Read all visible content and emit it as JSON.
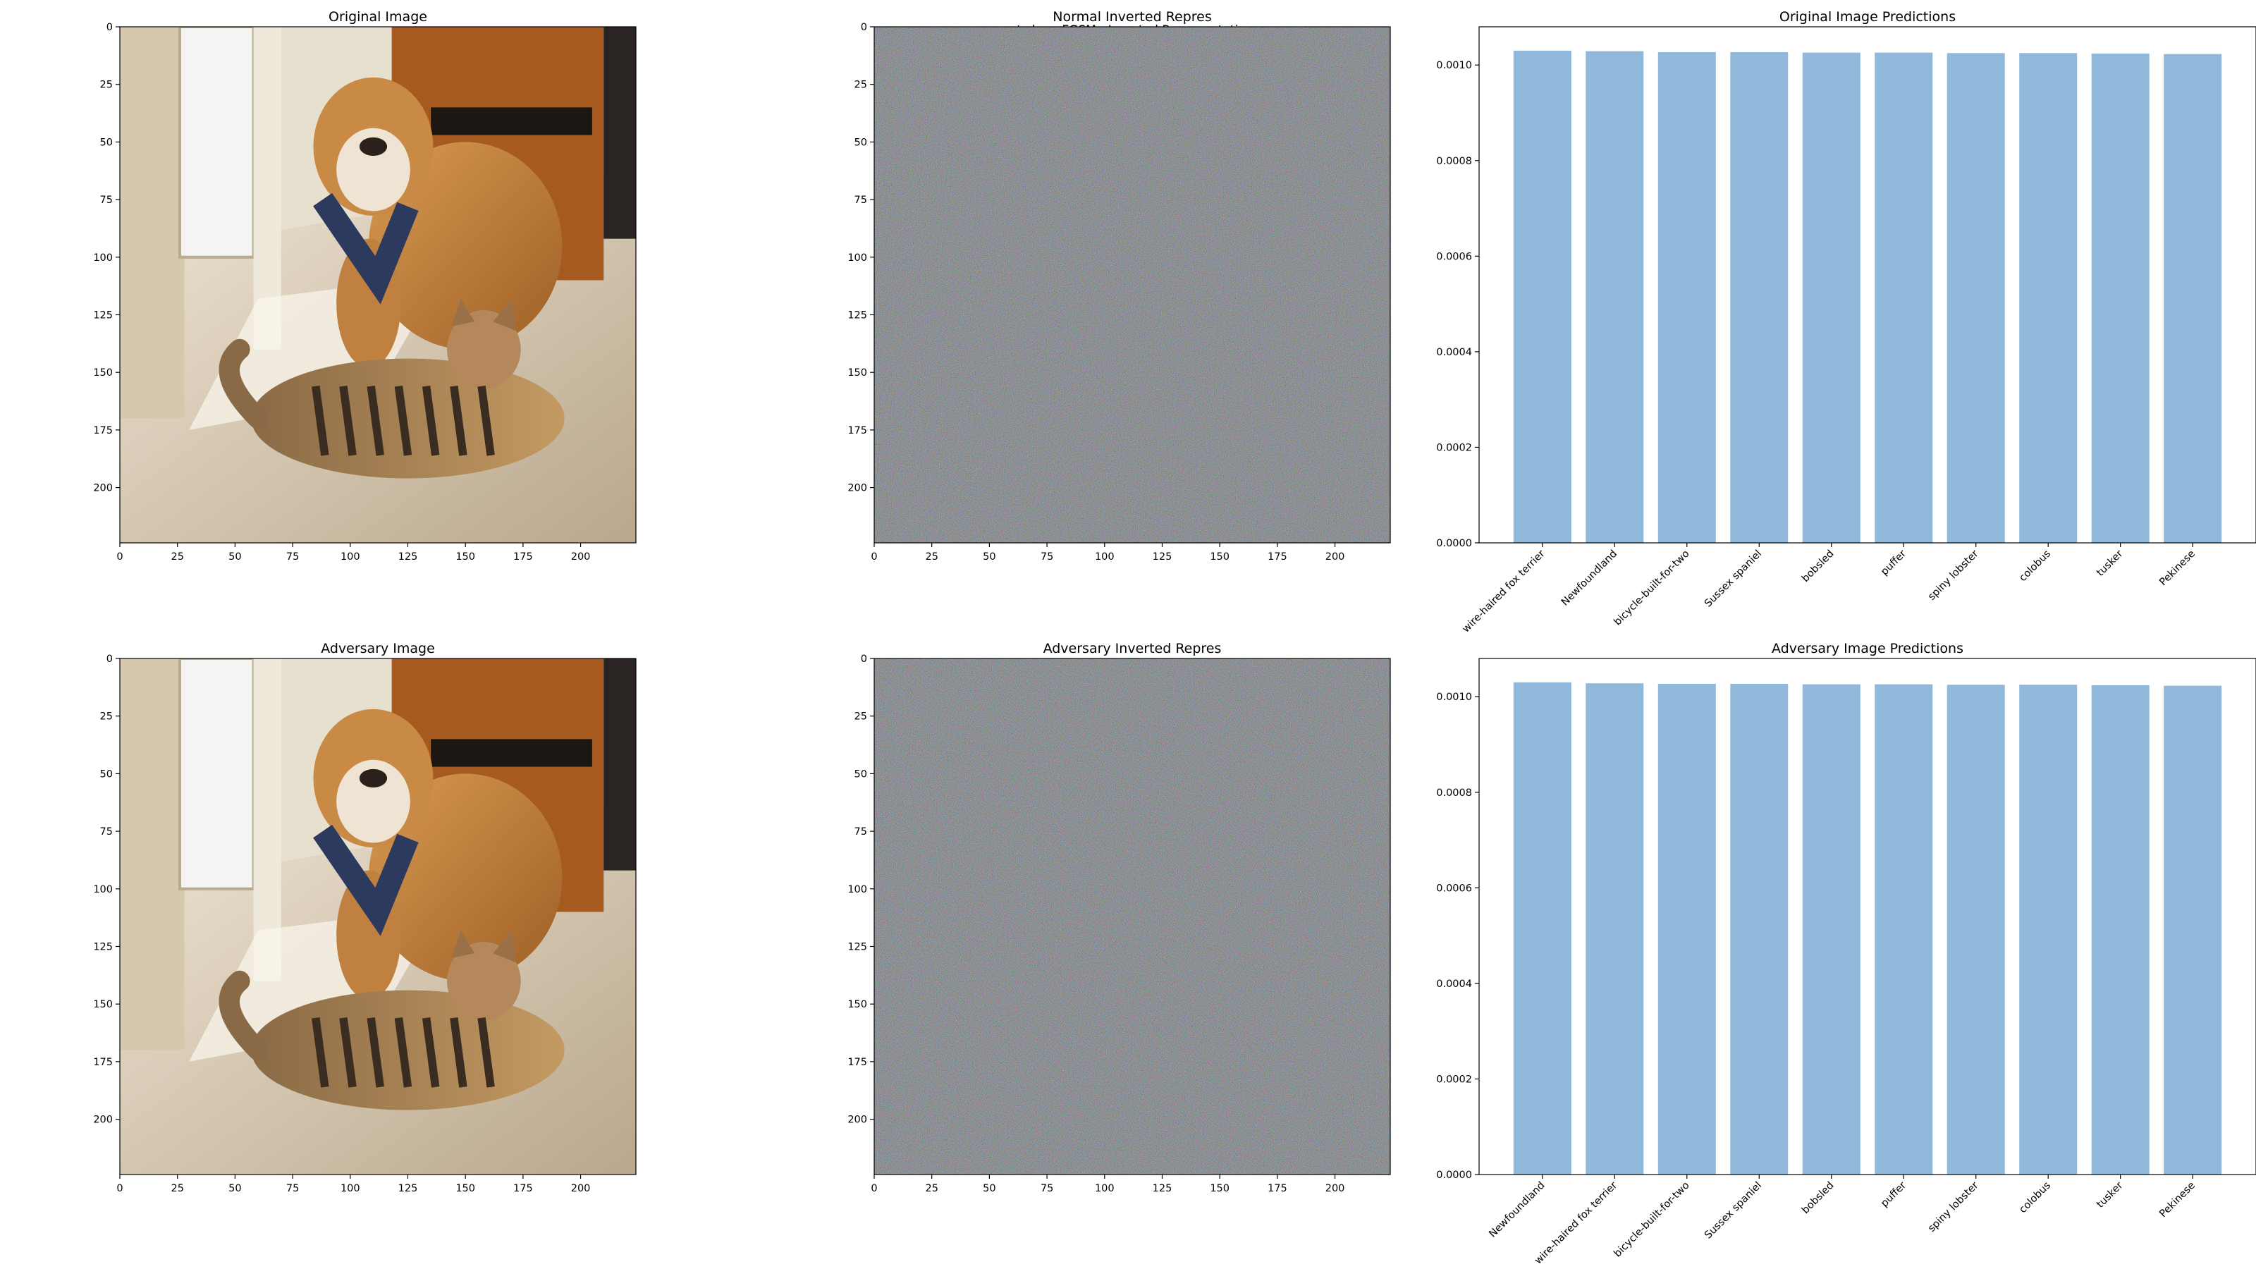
{
  "suptitle": "cat_dog - FGSM - Inverted Representation",
  "colors": {
    "bar": "#8fb8da",
    "noise_base": "#6b727c",
    "background": "#ffffff",
    "floor": "#cdbfa8",
    "door_wood": "#a65a1f",
    "dog_fur": "#c98a45",
    "cat_fur": "#a57a4a",
    "wall": "#e8e0cf"
  },
  "image_axes": {
    "ticks": [
      0,
      25,
      50,
      75,
      100,
      125,
      150,
      175,
      200
    ],
    "range": [
      0,
      224
    ]
  },
  "panels": [
    {
      "id": "original-image",
      "title": "Original Image",
      "kind": "photo"
    },
    {
      "id": "normal-inverted",
      "title": "Normal Inverted Repres",
      "kind": "noise"
    },
    {
      "id": "adversary-image",
      "title": "Adversary Image",
      "kind": "photo"
    },
    {
      "id": "adversary-inverted",
      "title": "Adversary Inverted Repres",
      "kind": "noise"
    }
  ],
  "chart_data": [
    {
      "type": "bar",
      "title": "Original Image Predictions",
      "categories": [
        "wire-haired fox terrier",
        "Newfoundland",
        "bicycle-built-for-two",
        "Sussex spaniel",
        "bobsled",
        "puffer",
        "spiny lobster",
        "colobus",
        "tusker",
        "Pekinese"
      ],
      "values": [
        0.00103,
        0.001029,
        0.001027,
        0.001027,
        0.001026,
        0.001026,
        0.001025,
        0.001025,
        0.001024,
        0.001023
      ],
      "yticks": [
        "0.0000",
        "0.0002",
        "0.0004",
        "0.0006",
        "0.0008",
        "0.0010"
      ],
      "ylim": [
        0,
        0.00108
      ]
    },
    {
      "type": "bar",
      "title": "Adversary Image Predictions",
      "categories": [
        "Newfoundland",
        "wire-haired fox terrier",
        "bicycle-built-for-two",
        "Sussex spaniel",
        "bobsled",
        "puffer",
        "spiny lobster",
        "colobus",
        "tusker",
        "Pekinese"
      ],
      "values": [
        0.00103,
        0.001028,
        0.001027,
        0.001027,
        0.001026,
        0.001026,
        0.001025,
        0.001025,
        0.001024,
        0.001023
      ],
      "yticks": [
        "0.0000",
        "0.0002",
        "0.0004",
        "0.0006",
        "0.0008",
        "0.0010"
      ],
      "ylim": [
        0,
        0.00108
      ]
    }
  ]
}
